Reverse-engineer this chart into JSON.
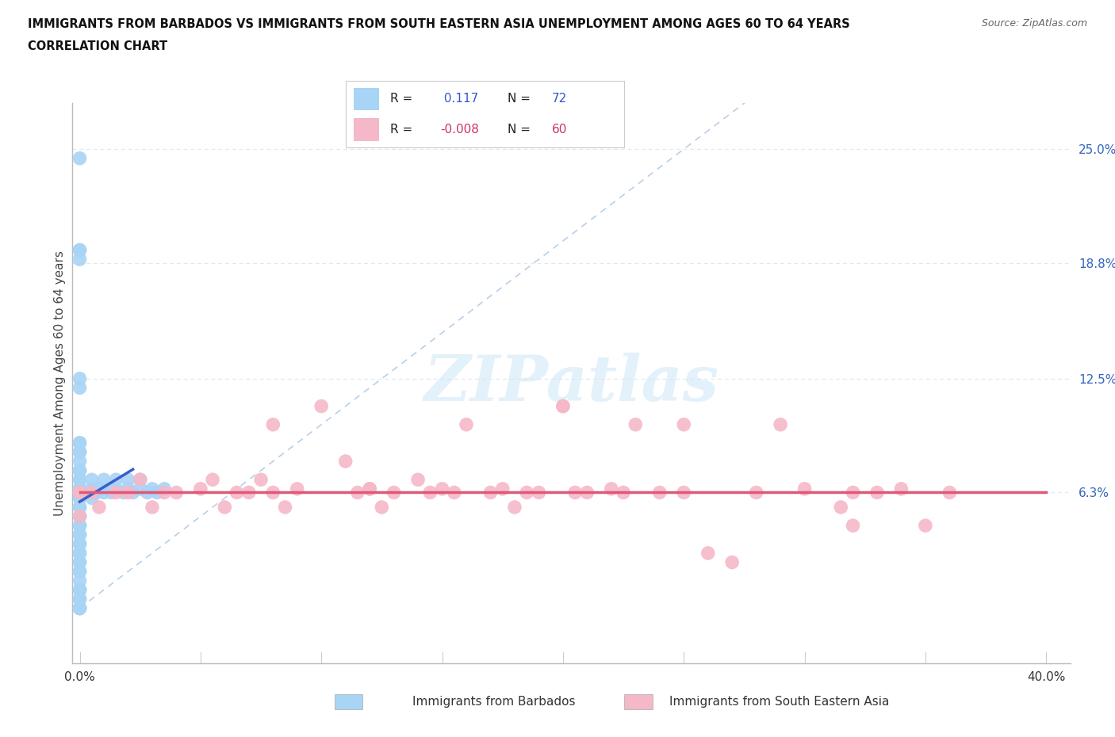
{
  "title_line1": "IMMIGRANTS FROM BARBADOS VS IMMIGRANTS FROM SOUTH EASTERN ASIA UNEMPLOYMENT AMONG AGES 60 TO 64 YEARS",
  "title_line2": "CORRELATION CHART",
  "source": "Source: ZipAtlas.com",
  "ylabel": "Unemployment Among Ages 60 to 64 years",
  "xlim": [
    -0.003,
    0.41
  ],
  "ylim": [
    -0.03,
    0.275
  ],
  "xticks": [
    0.0,
    0.05,
    0.1,
    0.15,
    0.2,
    0.25,
    0.3,
    0.35,
    0.4
  ],
  "xtick_labels": [
    "0.0%",
    "",
    "",
    "",
    "",
    "",
    "",
    "",
    "40.0%"
  ],
  "ytick_positions_right": [
    0.063,
    0.125,
    0.188,
    0.25
  ],
  "ytick_labels_right": [
    "6.3%",
    "12.5%",
    "18.8%",
    "25.0%"
  ],
  "color_barbados": "#a8d4f5",
  "color_sea": "#f5b8c8",
  "trend_color_barbados": "#3a5ecc",
  "trend_color_sea": "#e05878",
  "ref_line_color": "#b8d0e8",
  "watermark_color": "#d0e8f8",
  "background_color": "#ffffff",
  "grid_color": "#e0e8f0",
  "barbados_x": [
    0.0,
    0.0,
    0.0,
    0.0,
    0.0,
    0.0,
    0.0,
    0.0,
    0.0,
    0.0,
    0.0,
    0.0,
    0.0,
    0.0,
    0.0,
    0.0,
    0.0,
    0.0,
    0.0,
    0.0,
    0.0,
    0.0,
    0.0,
    0.0,
    0.0,
    0.0,
    0.0,
    0.0,
    0.0,
    0.0,
    0.0,
    0.0,
    0.0,
    0.0,
    0.0,
    0.0,
    0.0,
    0.0,
    0.0,
    0.0,
    0.0,
    0.0,
    0.0,
    0.0,
    0.0,
    0.0,
    0.0,
    0.0,
    0.0,
    0.0,
    0.005,
    0.005,
    0.005,
    0.005,
    0.007,
    0.008,
    0.01,
    0.01,
    0.012,
    0.013,
    0.015,
    0.015,
    0.018,
    0.02,
    0.02,
    0.022,
    0.025,
    0.025,
    0.028,
    0.03,
    0.032,
    0.035
  ],
  "barbados_y": [
    0.245,
    0.0,
    0.0,
    0.01,
    0.01,
    0.02,
    0.02,
    0.025,
    0.025,
    0.03,
    0.03,
    0.035,
    0.035,
    0.04,
    0.04,
    0.045,
    0.045,
    0.05,
    0.05,
    0.055,
    0.055,
    0.06,
    0.06,
    0.063,
    0.063,
    0.063,
    0.063,
    0.065,
    0.065,
    0.07,
    0.07,
    0.075,
    0.075,
    0.08,
    0.085,
    0.085,
    0.09,
    0.09,
    0.19,
    0.195,
    0.195,
    0.12,
    0.125,
    0.0,
    0.0,
    0.0,
    0.005,
    0.005,
    0.01,
    0.015,
    0.06,
    0.063,
    0.065,
    0.07,
    0.063,
    0.065,
    0.063,
    0.07,
    0.065,
    0.063,
    0.065,
    0.07,
    0.063,
    0.07,
    0.065,
    0.063,
    0.065,
    0.07,
    0.063,
    0.065,
    0.063,
    0.065
  ],
  "sea_x": [
    0.0,
    0.0,
    0.0,
    0.005,
    0.008,
    0.015,
    0.02,
    0.025,
    0.03,
    0.035,
    0.04,
    0.05,
    0.055,
    0.06,
    0.065,
    0.07,
    0.075,
    0.08,
    0.085,
    0.09,
    0.1,
    0.11,
    0.115,
    0.12,
    0.125,
    0.13,
    0.14,
    0.145,
    0.15,
    0.155,
    0.16,
    0.17,
    0.175,
    0.18,
    0.185,
    0.19,
    0.2,
    0.205,
    0.21,
    0.22,
    0.225,
    0.23,
    0.24,
    0.25,
    0.26,
    0.27,
    0.28,
    0.29,
    0.3,
    0.315,
    0.32,
    0.33,
    0.34,
    0.35,
    0.36,
    0.08,
    0.12,
    0.2,
    0.25,
    0.32
  ],
  "sea_y": [
    0.063,
    0.063,
    0.05,
    0.063,
    0.055,
    0.063,
    0.063,
    0.07,
    0.055,
    0.063,
    0.063,
    0.065,
    0.07,
    0.055,
    0.063,
    0.063,
    0.07,
    0.063,
    0.055,
    0.065,
    0.11,
    0.08,
    0.063,
    0.065,
    0.055,
    0.063,
    0.07,
    0.063,
    0.065,
    0.063,
    0.1,
    0.063,
    0.065,
    0.055,
    0.063,
    0.063,
    0.11,
    0.063,
    0.063,
    0.065,
    0.063,
    0.1,
    0.063,
    0.063,
    0.03,
    0.025,
    0.063,
    0.1,
    0.065,
    0.055,
    0.063,
    0.063,
    0.065,
    0.045,
    0.063,
    0.1,
    0.065,
    0.11,
    0.1,
    0.045
  ],
  "barbados_trend_x": [
    0.0,
    0.022
  ],
  "barbados_trend_y_intercept": 0.058,
  "barbados_trend_slope": 0.8,
  "sea_trend_y": 0.063,
  "watermark": "ZIPatlas"
}
